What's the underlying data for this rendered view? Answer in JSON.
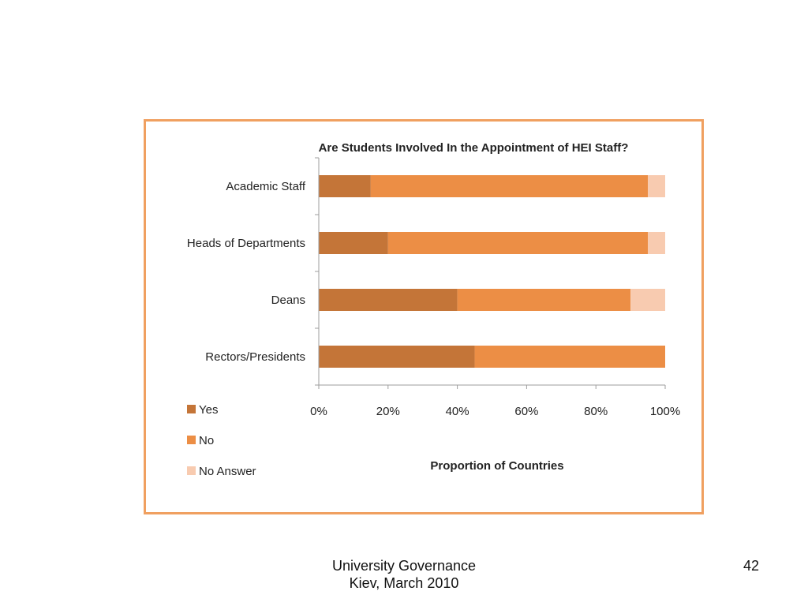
{
  "chart_data": {
    "type": "bar",
    "orientation": "horizontal",
    "stacked": true,
    "normalized": true,
    "title": "Are Students Involved In the Appointment of HEI Staff?",
    "xlabel": "Proportion of Countries",
    "ylabel": "",
    "categories": [
      "Academic Staff",
      "Heads of Departments",
      "Deans",
      "Rectors/Presidents"
    ],
    "series": [
      {
        "name": "Yes",
        "values": [
          15,
          20,
          40,
          45
        ],
        "color": "#c47538"
      },
      {
        "name": "No",
        "values": [
          80,
          75,
          50,
          55
        ],
        "color": "#ec8e45"
      },
      {
        "name": "No Answer",
        "values": [
          5,
          5,
          10,
          0
        ],
        "color": "#f8cbb0"
      }
    ],
    "xticks": [
      "0%",
      "20%",
      "40%",
      "60%",
      "80%",
      "100%"
    ],
    "xlim": [
      0,
      100
    ],
    "legend": "bottom-left",
    "grid": false
  },
  "footer": {
    "line1": "University Governance",
    "line2": "Kiev, March 2010",
    "page_number": "42"
  },
  "colors": {
    "frame_border": "#f0a060",
    "axis": "#9e9e9e",
    "text": "#222222"
  }
}
